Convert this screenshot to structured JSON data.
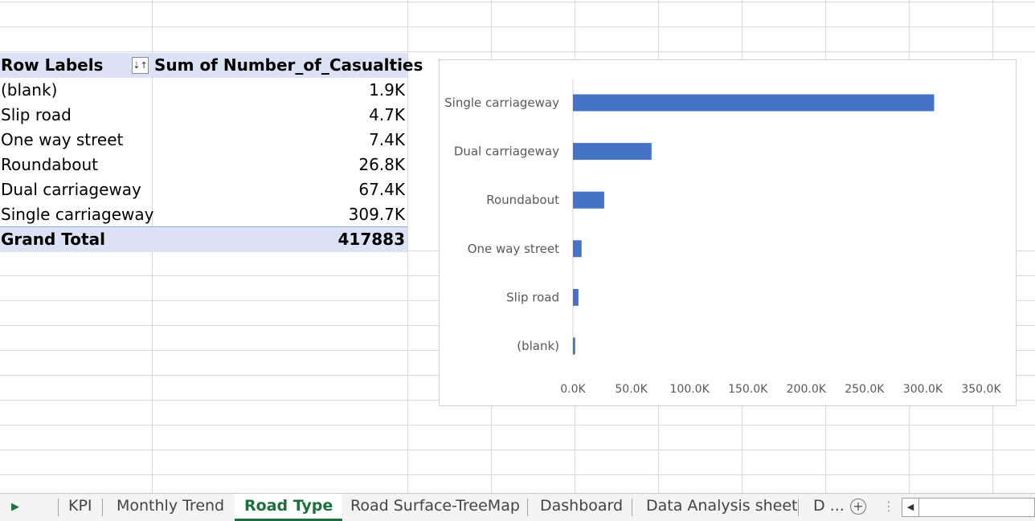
{
  "pivot": {
    "header_rows": "Row Labels",
    "header_values": "Sum of Number_of_Casualties",
    "rows": [
      {
        "label": "(blank)",
        "value": "1.9K"
      },
      {
        "label": "Slip road",
        "value": "4.7K"
      },
      {
        "label": "One way street",
        "value": "7.4K"
      },
      {
        "label": "Roundabout",
        "value": "26.8K"
      },
      {
        "label": "Dual carriageway",
        "value": "67.4K"
      },
      {
        "label": "Single carriageway",
        "value": "309.7K"
      }
    ],
    "total_label": "Grand Total",
    "total_value": "417883"
  },
  "chart_data": {
    "type": "bar",
    "orientation": "horizontal",
    "categories": [
      "Single carriageway",
      "Dual carriageway",
      "Roundabout",
      "One way street",
      "Slip road",
      "(blank)"
    ],
    "values": [
      309700,
      67400,
      26800,
      7400,
      4700,
      1900
    ],
    "xticks": [
      "0.0K",
      "50.0K",
      "100.0K",
      "150.0K",
      "200.0K",
      "250.0K",
      "300.0K",
      "350.0K"
    ],
    "xlim": [
      0,
      350000
    ],
    "bar_color": "#4472c4",
    "title": "",
    "xlabel": "",
    "ylabel": "",
    "grid": false
  },
  "tabs": {
    "items": [
      "KPI",
      "Monthly Trend",
      "Road Type",
      "Road Surface-TreeMap",
      "Dashboard",
      "Data Analysis sheet",
      "D ..."
    ],
    "active": "Road Type",
    "add_symbol": "+",
    "more_symbol": "⋮"
  },
  "colors": {
    "pivot_header_bg": "#dae2f3",
    "active_tab": "#1e6e3e",
    "bar": "#4472c4"
  }
}
